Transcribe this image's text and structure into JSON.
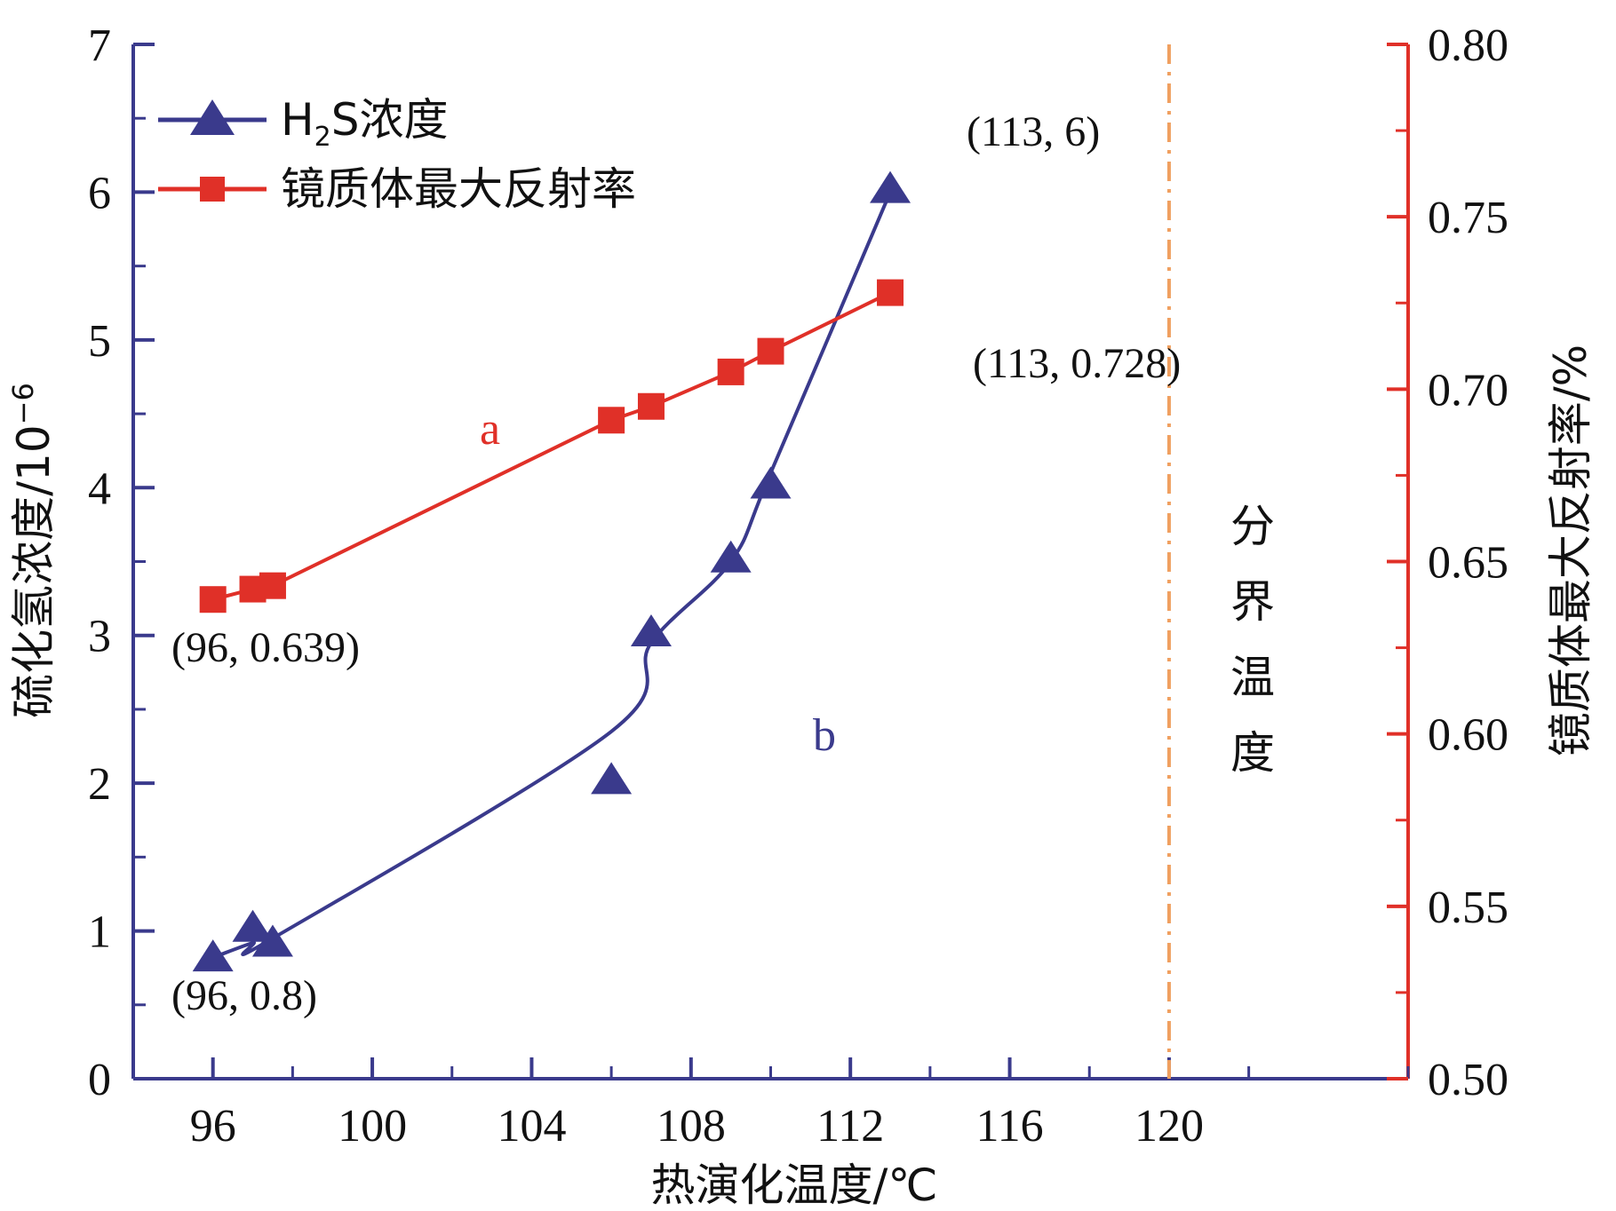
{
  "chart_data": {
    "type": "line",
    "xlabel": "热演化温度/℃",
    "ylabel_left": "硫化氢浓度/10",
    "ylabel_left_exp": "−6",
    "ylabel_right": "镜质体最大反射率/%",
    "xlim": [
      94,
      126
    ],
    "x_ticks": [
      96,
      100,
      104,
      108,
      112,
      116,
      120
    ],
    "ylim_left": [
      0,
      7
    ],
    "y_left_ticks": [
      0,
      1,
      2,
      3,
      4,
      5,
      6,
      7
    ],
    "ylim_right": [
      0.5,
      0.8
    ],
    "y_right_ticks": [
      "0.50",
      "0.55",
      "0.60",
      "0.65",
      "0.70",
      "0.75",
      "0.80"
    ],
    "series": [
      {
        "name": "H2S浓度",
        "legend_main": "H",
        "legend_sub": "2",
        "legend_rest": "S浓度",
        "axis": "left",
        "marker": "triangle",
        "color": "#3a3a8c",
        "x": [
          96,
          97,
          97.5,
          106,
          107,
          109,
          110,
          113
        ],
        "y": [
          0.8,
          1.0,
          0.9,
          2.0,
          3.0,
          3.5,
          4.0,
          6.0
        ]
      },
      {
        "name": "镜质体最大反射率",
        "axis": "right",
        "marker": "square",
        "color": "#e03028",
        "x": [
          96,
          97,
          97.5,
          106,
          107,
          109,
          110,
          113
        ],
        "y": [
          0.639,
          0.642,
          0.643,
          0.691,
          0.695,
          0.705,
          0.711,
          0.728
        ]
      }
    ],
    "annotations": [
      {
        "text": "(113, 6)",
        "x": 113,
        "y": 6,
        "axis": "left"
      },
      {
        "text": "(113, 0.728)",
        "x": 113,
        "y": 0.728,
        "axis": "right"
      },
      {
        "text": "(96, 0.639)",
        "x": 96,
        "y": 0.639,
        "axis": "right"
      },
      {
        "text": "(96, 0.8)",
        "x": 96,
        "y": 0.8,
        "axis": "left"
      }
    ],
    "curve_labels": {
      "a": "a",
      "b": "b"
    },
    "boundary": {
      "x": 120,
      "label_chars": [
        "分",
        "界",
        "温",
        "度"
      ],
      "color": "#f0a060"
    },
    "legend_position": "top-left",
    "left_axis_color": "#3a3a8c",
    "right_axis_color": "#e03028",
    "grid": false
  }
}
